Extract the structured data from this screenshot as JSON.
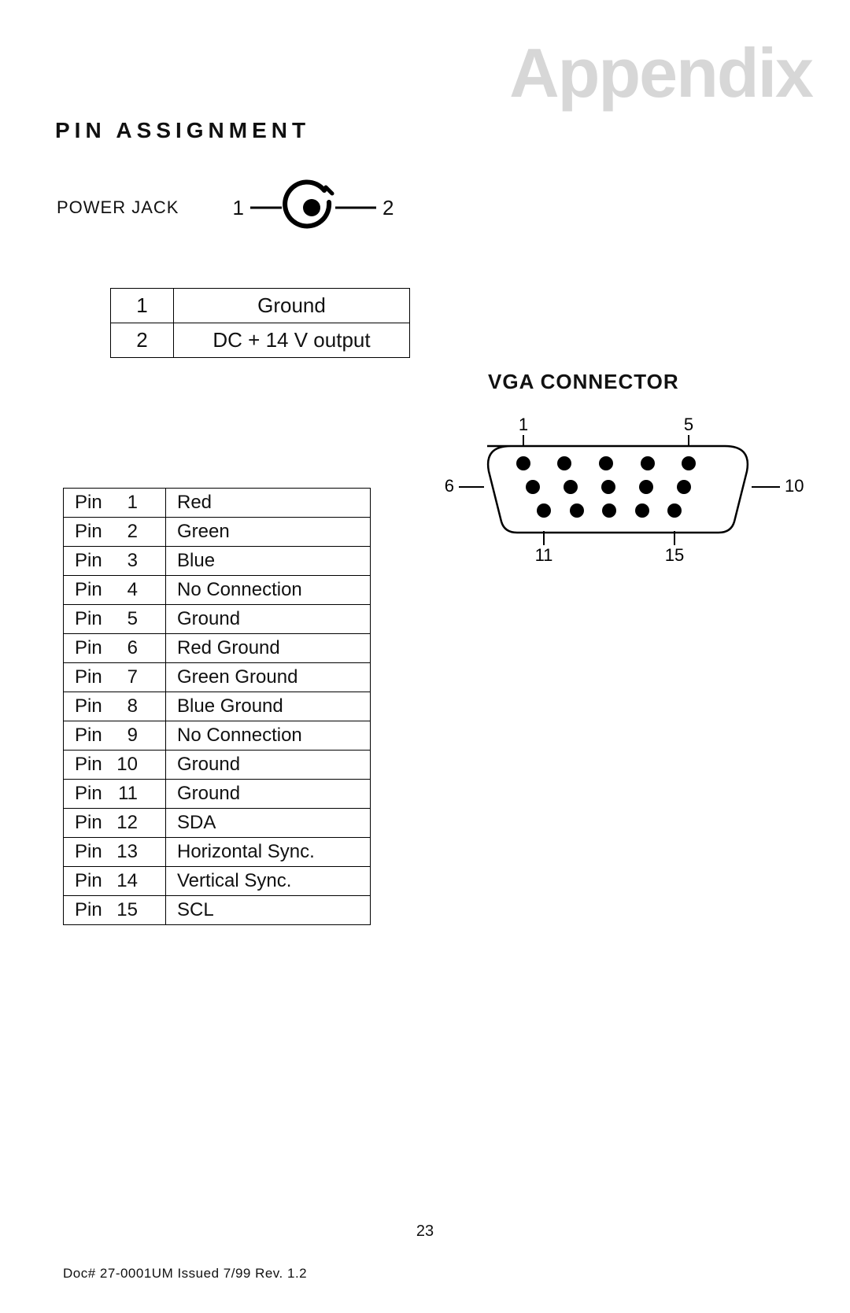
{
  "header": {
    "appendix": "Appendix",
    "section_title": "PIN  ASSIGNMENT"
  },
  "power_jack": {
    "label": "POWER JACK",
    "pin1_label": "1",
    "pin2_label": "2",
    "diagram": {
      "stroke": "#000000",
      "fill": "#000000",
      "bg": "#ffffff",
      "outer_line_width": 4,
      "inner_dot_radius": 10
    },
    "table": {
      "rows": [
        {
          "pin": "1",
          "signal": "Ground"
        },
        {
          "pin": "2",
          "signal": "DC + 14 V output"
        }
      ]
    }
  },
  "vga": {
    "title": "VGA CONNECTOR",
    "diagram": {
      "stroke": "#000000",
      "fill": "#000000",
      "bg": "#ffffff",
      "line_width": 2.5,
      "pin_radius": 9,
      "labels": {
        "top_left": "1",
        "top_right": "5",
        "mid_left": "6",
        "mid_right": "10",
        "bot_left": "11",
        "bot_right": "15"
      }
    },
    "table": {
      "pin_word": "Pin",
      "rows": [
        {
          "n": "1",
          "signal": "Red"
        },
        {
          "n": "2",
          "signal": "Green"
        },
        {
          "n": "3",
          "signal": "Blue"
        },
        {
          "n": "4",
          "signal": "No Connection"
        },
        {
          "n": "5",
          "signal": "Ground"
        },
        {
          "n": "6",
          "signal": "Red Ground"
        },
        {
          "n": "7",
          "signal": "Green Ground"
        },
        {
          "n": "8",
          "signal": "Blue Ground"
        },
        {
          "n": "9",
          "signal": "No Connection"
        },
        {
          "n": "10",
          "signal": "Ground"
        },
        {
          "n": "11",
          "signal": "Ground"
        },
        {
          "n": "12",
          "signal": "SDA"
        },
        {
          "n": "13",
          "signal": "Horizontal Sync."
        },
        {
          "n": "14",
          "signal": "Vertical Sync."
        },
        {
          "n": "15",
          "signal": "SCL"
        }
      ]
    }
  },
  "footer": {
    "page_number": "23",
    "docline": "Doc# 27-0001UM  Issued 7/99  Rev. 1.2"
  }
}
